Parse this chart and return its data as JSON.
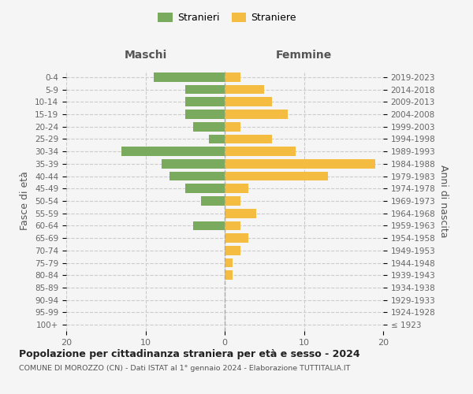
{
  "age_groups": [
    "100+",
    "95-99",
    "90-94",
    "85-89",
    "80-84",
    "75-79",
    "70-74",
    "65-69",
    "60-64",
    "55-59",
    "50-54",
    "45-49",
    "40-44",
    "35-39",
    "30-34",
    "25-29",
    "20-24",
    "15-19",
    "10-14",
    "5-9",
    "0-4"
  ],
  "birth_years": [
    "≤ 1923",
    "1924-1928",
    "1929-1933",
    "1934-1938",
    "1939-1943",
    "1944-1948",
    "1949-1953",
    "1954-1958",
    "1959-1963",
    "1964-1968",
    "1969-1973",
    "1974-1978",
    "1979-1983",
    "1984-1988",
    "1989-1993",
    "1994-1998",
    "1999-2003",
    "2004-2008",
    "2009-2013",
    "2014-2018",
    "2019-2023"
  ],
  "males": [
    0,
    0,
    0,
    0,
    0,
    0,
    0,
    0,
    4,
    0,
    3,
    5,
    7,
    8,
    13,
    2,
    4,
    5,
    5,
    5,
    9
  ],
  "females": [
    0,
    0,
    0,
    0,
    1,
    1,
    2,
    3,
    2,
    4,
    2,
    3,
    13,
    19,
    9,
    6,
    2,
    8,
    6,
    5,
    2
  ],
  "male_color": "#7aaa5e",
  "female_color": "#f5bc42",
  "background_color": "#f5f5f5",
  "grid_color": "#cccccc",
  "title": "Popolazione per cittadinanza straniera per età e sesso - 2024",
  "subtitle": "COMUNE DI MOROZZO (CN) - Dati ISTAT al 1° gennaio 2024 - Elaborazione TUTTITALIA.IT",
  "left_header": "Maschi",
  "right_header": "Femmine",
  "left_ylabel": "Fasce di età",
  "right_ylabel": "Anni di nascita",
  "legend_male": "Stranieri",
  "legend_female": "Straniere",
  "xlim": 20,
  "bar_height": 0.75
}
